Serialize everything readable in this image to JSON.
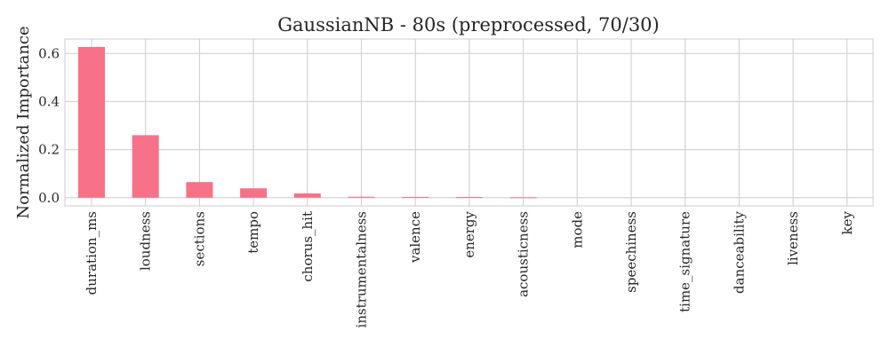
{
  "chart_data": {
    "type": "bar",
    "title": "GaussianNB - 80s (preprocessed, 70/30)",
    "xlabel": "",
    "ylabel": "Normalized Importance",
    "categories": [
      "duration_ms",
      "loudness",
      "sections",
      "tempo",
      "chorus_hit",
      "instrumentalness",
      "valence",
      "energy",
      "acousticness",
      "mode",
      "speechiness",
      "time_signature",
      "danceability",
      "liveness",
      "key"
    ],
    "values": [
      0.627,
      0.26,
      0.065,
      0.039,
      0.018,
      0.004,
      0.003,
      0.003,
      0.002,
      0.0,
      0.0,
      0.0,
      0.0,
      0.0,
      0.0
    ],
    "yticks": [
      0.0,
      0.2,
      0.4,
      0.6
    ],
    "ytick_labels": [
      "0.0",
      "0.2",
      "0.4",
      "0.6"
    ],
    "ylim": [
      -0.034,
      0.66
    ],
    "grid": true,
    "legend": "none",
    "bar_color": "#f77189"
  }
}
